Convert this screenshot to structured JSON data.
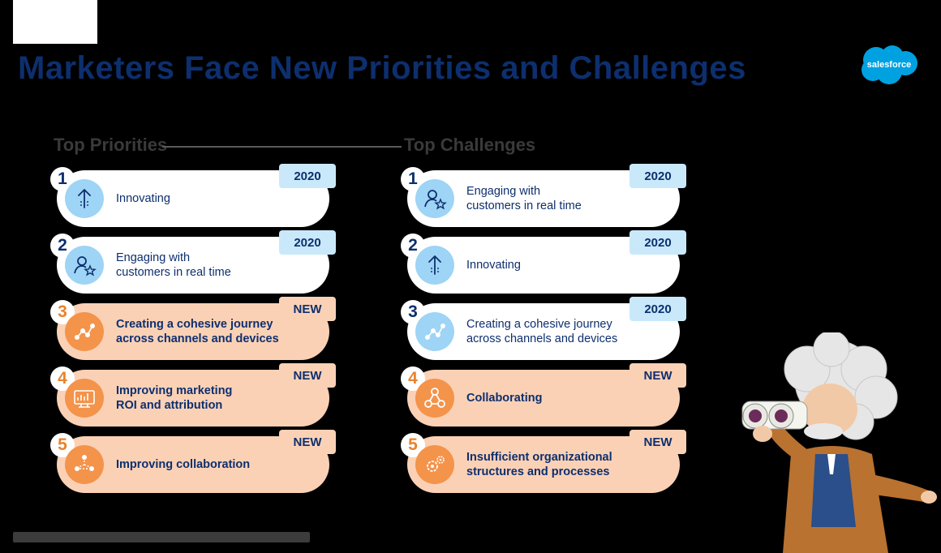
{
  "title": "Marketers Face New Priorities and Challenges",
  "logo_text": "salesforce",
  "columns": [
    {
      "heading": "Top Priorities",
      "items": [
        {
          "rank": "1",
          "text": "Innovating",
          "badge": "2020",
          "new": false,
          "icon": "arrow-up-icon"
        },
        {
          "rank": "2",
          "text": "Engaging with\ncustomers in real time",
          "badge": "2020",
          "new": false,
          "icon": "user-star-icon"
        },
        {
          "rank": "3",
          "text": "Creating a cohesive journey\nacross channels and devices",
          "badge": "NEW",
          "new": true,
          "icon": "journey-path-icon"
        },
        {
          "rank": "4",
          "text": "Improving marketing\nROI and attribution",
          "badge": "NEW",
          "new": true,
          "icon": "chart-screen-icon"
        },
        {
          "rank": "5",
          "text": "Improving collaboration",
          "badge": "NEW",
          "new": true,
          "icon": "people-network-icon"
        }
      ]
    },
    {
      "heading": "Top Challenges",
      "items": [
        {
          "rank": "1",
          "text": "Engaging with\ncustomers in real time",
          "badge": "2020",
          "new": false,
          "icon": "user-star-icon"
        },
        {
          "rank": "2",
          "text": "Innovating",
          "badge": "2020",
          "new": false,
          "icon": "arrow-up-icon"
        },
        {
          "rank": "3",
          "text": "Creating a cohesive journey\nacross channels and devices",
          "badge": "2020",
          "new": false,
          "icon": "journey-path-icon"
        },
        {
          "rank": "4",
          "text": "Collaborating",
          "badge": "NEW",
          "new": true,
          "icon": "collaboration-nodes-icon"
        },
        {
          "rank": "5",
          "text": "Insufficient organizational\nstructures and processes",
          "badge": "NEW",
          "new": true,
          "icon": "gears-icon"
        }
      ]
    }
  ],
  "colors": {
    "navy": "#0d2f6e",
    "light_blue": "#9ed4f5",
    "badge_blue": "#c9e9fb",
    "peach": "#fbd1b6",
    "orange": "#f4934a",
    "salesforce_blue": "#00a1e0"
  }
}
